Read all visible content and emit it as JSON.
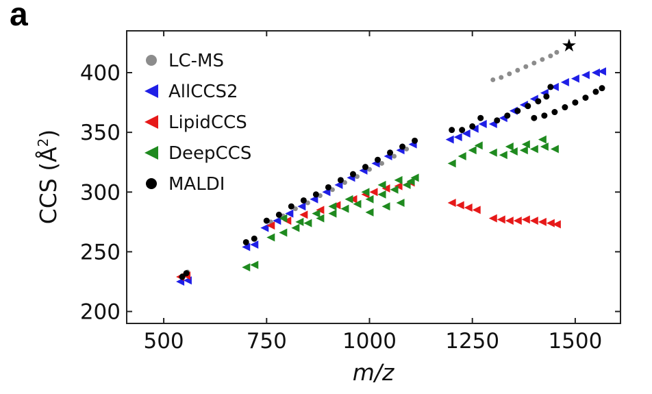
{
  "panel_label": "a",
  "chart_data": {
    "type": "scatter",
    "title": "",
    "xlabel": "m/z",
    "ylabel": "CCS (Å²)",
    "ylabel_parts": {
      "main": "CCS (Å",
      "sup": "2",
      "close": ")"
    },
    "xlim": [
      410,
      1610
    ],
    "ylim": [
      190,
      435
    ],
    "xticks": [
      500,
      750,
      1000,
      1250,
      1500
    ],
    "yticks": [
      200,
      250,
      300,
      350,
      400
    ],
    "legend_position": "top-left",
    "colors": {
      "LC-MS": "#8c8c8c",
      "AllCCS2": "#1f1fe6",
      "LipidCCS": "#e61919",
      "DeepCCS": "#1f8a1f",
      "MALDI": "#000000"
    },
    "legend": [
      {
        "name": "LC-MS",
        "marker": "circle"
      },
      {
        "name": "AllCCS2",
        "marker": "triangle-left"
      },
      {
        "name": "LipidCCS",
        "marker": "triangle-left"
      },
      {
        "name": "DeepCCS",
        "marker": "triangle-left"
      },
      {
        "name": "MALDI",
        "marker": "circle"
      }
    ],
    "annotations": [
      {
        "symbol": "★",
        "x": 1485,
        "y": 423
      }
    ],
    "series": [
      {
        "name": "LC-MS",
        "marker": "circle",
        "points": [
          [
            545,
            230
          ],
          [
            552,
            231
          ],
          [
            558,
            233
          ],
          [
            760,
            275
          ],
          [
            790,
            280
          ],
          [
            820,
            286
          ],
          [
            850,
            291
          ],
          [
            880,
            297
          ],
          [
            910,
            302
          ],
          [
            940,
            308
          ],
          [
            970,
            313
          ],
          [
            1000,
            319
          ],
          [
            1030,
            324
          ],
          [
            1060,
            330
          ],
          [
            1090,
            336
          ],
          [
            1300,
            394
          ],
          [
            1320,
            396
          ],
          [
            1340,
            399
          ],
          [
            1360,
            402
          ],
          [
            1380,
            405
          ],
          [
            1400,
            408
          ],
          [
            1420,
            411
          ],
          [
            1440,
            414
          ],
          [
            1455,
            417
          ]
        ]
      },
      {
        "name": "AllCCS2",
        "marker": "triangle-left",
        "points": [
          [
            540,
            225
          ],
          [
            558,
            226
          ],
          [
            700,
            254
          ],
          [
            720,
            256
          ],
          [
            745,
            270
          ],
          [
            775,
            276
          ],
          [
            805,
            282
          ],
          [
            835,
            288
          ],
          [
            865,
            294
          ],
          [
            895,
            300
          ],
          [
            925,
            306
          ],
          [
            955,
            312
          ],
          [
            985,
            318
          ],
          [
            1015,
            324
          ],
          [
            1045,
            330
          ],
          [
            1075,
            335
          ],
          [
            1105,
            340
          ],
          [
            1195,
            344
          ],
          [
            1215,
            346
          ],
          [
            1235,
            349
          ],
          [
            1255,
            353
          ],
          [
            1275,
            357
          ],
          [
            1300,
            357
          ],
          [
            1325,
            362
          ],
          [
            1350,
            368
          ],
          [
            1375,
            373
          ],
          [
            1400,
            378
          ],
          [
            1425,
            383
          ],
          [
            1450,
            388
          ],
          [
            1475,
            392
          ],
          [
            1500,
            395
          ],
          [
            1525,
            398
          ],
          [
            1550,
            400
          ],
          [
            1565,
            401
          ]
        ]
      },
      {
        "name": "LipidCCS",
        "marker": "triangle-left",
        "points": [
          [
            540,
            229
          ],
          [
            555,
            230
          ],
          [
            760,
            272
          ],
          [
            800,
            276
          ],
          [
            840,
            281
          ],
          [
            880,
            285
          ],
          [
            920,
            289
          ],
          [
            960,
            294
          ],
          [
            990,
            298
          ],
          [
            1010,
            300
          ],
          [
            1040,
            303
          ],
          [
            1070,
            305
          ],
          [
            1100,
            308
          ],
          [
            1200,
            291
          ],
          [
            1220,
            289
          ],
          [
            1240,
            287
          ],
          [
            1260,
            285
          ],
          [
            1300,
            278
          ],
          [
            1320,
            277
          ],
          [
            1340,
            276
          ],
          [
            1360,
            276
          ],
          [
            1380,
            277
          ],
          [
            1400,
            276
          ],
          [
            1420,
            275
          ],
          [
            1440,
            274
          ],
          [
            1455,
            273
          ]
        ]
      },
      {
        "name": "DeepCCS",
        "marker": "triangle-left",
        "points": [
          [
            700,
            237
          ],
          [
            720,
            239
          ],
          [
            760,
            262
          ],
          [
            790,
            266
          ],
          [
            820,
            270
          ],
          [
            850,
            274
          ],
          [
            880,
            278
          ],
          [
            910,
            282
          ],
          [
            940,
            286
          ],
          [
            970,
            290
          ],
          [
            1000,
            294
          ],
          [
            1030,
            298
          ],
          [
            1060,
            302
          ],
          [
            1090,
            306
          ],
          [
            1110,
            312
          ],
          [
            790,
            278
          ],
          [
            830,
            275
          ],
          [
            870,
            282
          ],
          [
            910,
            288
          ],
          [
            950,
            294
          ],
          [
            990,
            300
          ],
          [
            1030,
            306
          ],
          [
            1070,
            310
          ],
          [
            1100,
            309
          ],
          [
            1000,
            283
          ],
          [
            1040,
            288
          ],
          [
            1075,
            291
          ],
          [
            1200,
            324
          ],
          [
            1225,
            330
          ],
          [
            1250,
            335
          ],
          [
            1265,
            339
          ],
          [
            1300,
            333
          ],
          [
            1325,
            331
          ],
          [
            1350,
            334
          ],
          [
            1375,
            335
          ],
          [
            1400,
            336
          ],
          [
            1425,
            338
          ],
          [
            1450,
            336
          ],
          [
            1420,
            344
          ],
          [
            1380,
            340
          ],
          [
            1340,
            338
          ]
        ]
      },
      {
        "name": "MALDI",
        "marker": "circle",
        "points": [
          [
            545,
            229
          ],
          [
            555,
            232
          ],
          [
            700,
            258
          ],
          [
            720,
            261
          ],
          [
            750,
            276
          ],
          [
            780,
            281
          ],
          [
            810,
            288
          ],
          [
            840,
            293
          ],
          [
            870,
            298
          ],
          [
            900,
            304
          ],
          [
            930,
            310
          ],
          [
            960,
            315
          ],
          [
            990,
            321
          ],
          [
            1020,
            327
          ],
          [
            1050,
            333
          ],
          [
            1080,
            338
          ],
          [
            1110,
            343
          ],
          [
            1200,
            352
          ],
          [
            1225,
            352
          ],
          [
            1250,
            355
          ],
          [
            1270,
            362
          ],
          [
            1310,
            360
          ],
          [
            1335,
            364
          ],
          [
            1360,
            368
          ],
          [
            1385,
            372
          ],
          [
            1410,
            376
          ],
          [
            1430,
            380
          ],
          [
            1440,
            388
          ],
          [
            1400,
            362
          ],
          [
            1425,
            364
          ],
          [
            1450,
            367
          ],
          [
            1475,
            371
          ],
          [
            1500,
            375
          ],
          [
            1525,
            379
          ],
          [
            1550,
            384
          ],
          [
            1565,
            387
          ]
        ]
      }
    ]
  }
}
